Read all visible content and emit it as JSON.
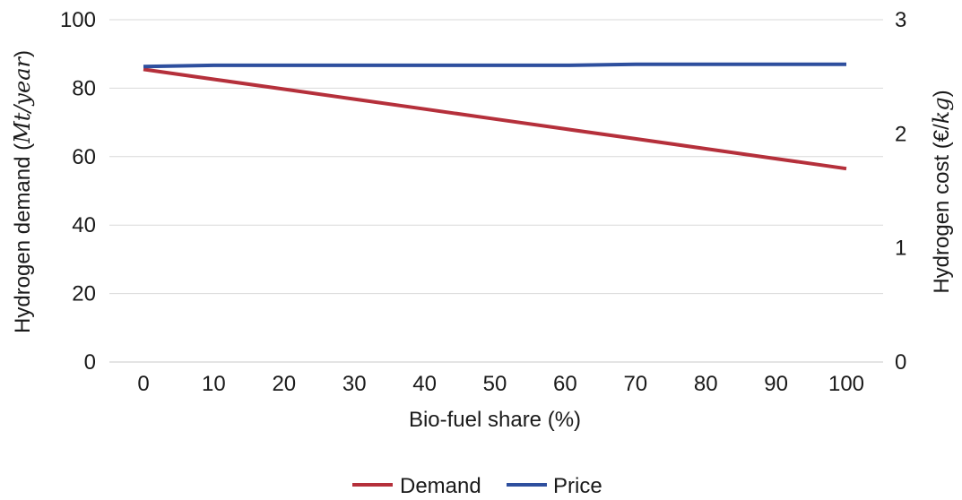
{
  "chart_data": {
    "type": "line",
    "x": [
      0,
      10,
      20,
      30,
      40,
      50,
      60,
      70,
      80,
      90,
      100
    ],
    "x_ticks": [
      "0",
      "10",
      "20",
      "30",
      "40",
      "50",
      "60",
      "70",
      "80",
      "90",
      "100"
    ],
    "xlabel": "Bio-fuel share (%)",
    "y_left": {
      "label_prefix": "Hydrogen demand (",
      "label_math": "Mt/year",
      "label_suffix": ")",
      "lim": [
        0,
        100
      ],
      "ticks": [
        0,
        20,
        40,
        60,
        80,
        100
      ]
    },
    "y_right": {
      "label_prefix": "Hydrogen cost (€/",
      "label_math": "kg",
      "label_suffix": ")",
      "lim": [
        0,
        3
      ],
      "ticks": [
        0,
        1,
        2,
        3
      ]
    },
    "series": [
      {
        "name": "Demand",
        "axis": "left",
        "color": "#b5303b",
        "values": [
          85.5,
          82.6,
          79.7,
          76.8,
          73.9,
          71.0,
          68.1,
          65.2,
          62.3,
          59.4,
          56.5
        ]
      },
      {
        "name": "Price",
        "axis": "right",
        "color": "#2e4f9e",
        "values": [
          2.59,
          2.6,
          2.6,
          2.6,
          2.6,
          2.6,
          2.6,
          2.61,
          2.61,
          2.61,
          2.61
        ]
      }
    ],
    "grid": true,
    "legend_position": "bottom-center"
  }
}
